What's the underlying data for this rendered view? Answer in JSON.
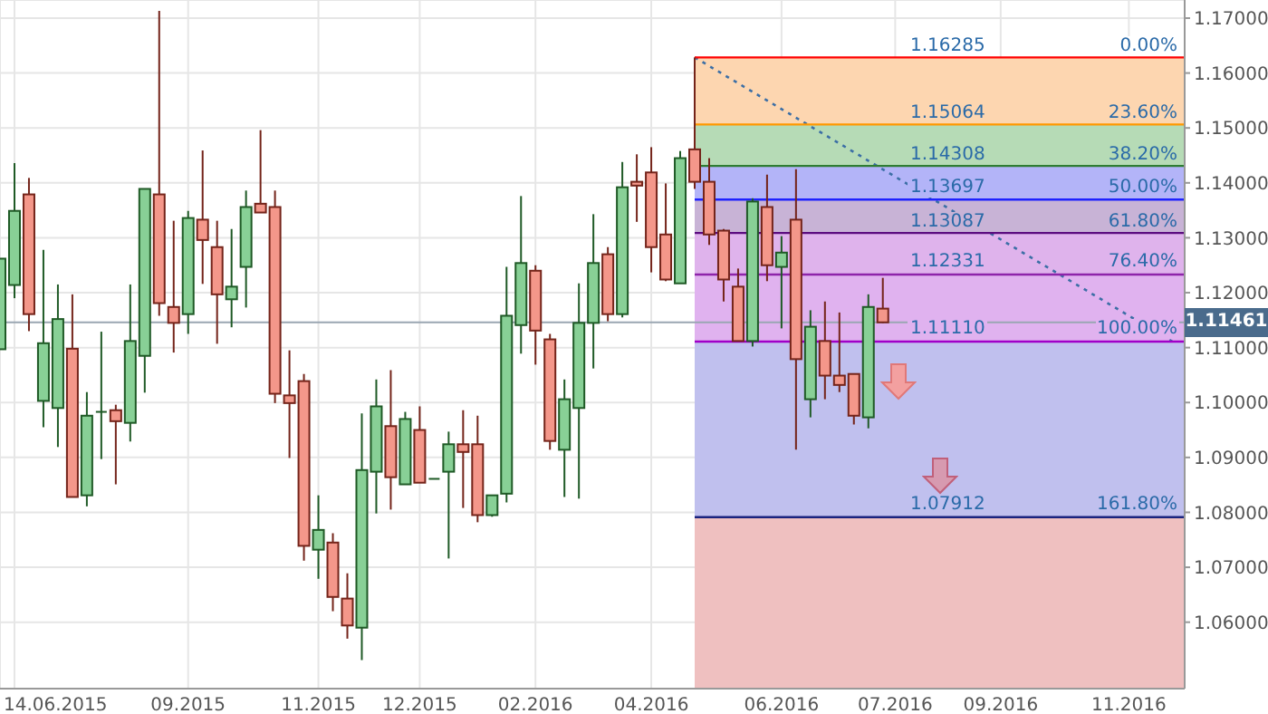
{
  "chart_data": {
    "type": "candlestick",
    "x": [
      "2015-06-07",
      "2015-06-14",
      "2015-06-21",
      "2015-06-28",
      "2015-07-05",
      "2015-07-12",
      "2015-07-19",
      "2015-07-26",
      "2015-08-02",
      "2015-08-09",
      "2015-08-16",
      "2015-08-23",
      "2015-08-30",
      "2015-09-06",
      "2015-09-13",
      "2015-09-20",
      "2015-09-27",
      "2015-10-04",
      "2015-10-11",
      "2015-10-18",
      "2015-10-25",
      "2015-11-01",
      "2015-11-08",
      "2015-11-15",
      "2015-11-22",
      "2015-11-29",
      "2015-12-06",
      "2015-12-13",
      "2015-12-20",
      "2015-12-27",
      "2016-01-03",
      "2016-01-10",
      "2016-01-17",
      "2016-01-24",
      "2016-01-31",
      "2016-02-07",
      "2016-02-14",
      "2016-02-21",
      "2016-02-28",
      "2016-03-06",
      "2016-03-13",
      "2016-03-20",
      "2016-03-27",
      "2016-04-03",
      "2016-04-10",
      "2016-04-17",
      "2016-04-24",
      "2016-05-01",
      "2016-05-08",
      "2016-05-15",
      "2016-05-22",
      "2016-05-29",
      "2016-06-05",
      "2016-06-12",
      "2016-06-19",
      "2016-06-26",
      "2016-07-03",
      "2016-07-10",
      "2016-07-17",
      "2016-07-24",
      "2016-07-31",
      "2016-08-07"
    ],
    "ohlc": [
      [
        1.1097,
        1.1262,
        1.1097,
        1.1262
      ],
      [
        1.1214,
        1.1436,
        1.119,
        1.1349
      ],
      [
        1.1379,
        1.1409,
        1.113,
        1.1161
      ],
      [
        1.1003,
        1.1278,
        1.0955,
        1.1108
      ],
      [
        1.099,
        1.1215,
        1.0919,
        1.1152
      ],
      [
        1.1098,
        1.1197,
        1.0828,
        1.0828
      ],
      [
        1.0831,
        1.1019,
        1.0811,
        1.0976
      ],
      [
        1.0983,
        1.1129,
        1.0897,
        1.0983
      ],
      [
        1.0986,
        1.0996,
        1.0851,
        1.0966
      ],
      [
        1.0963,
        1.1215,
        1.0929,
        1.1112
      ],
      [
        1.1085,
        1.1389,
        1.1018,
        1.1389
      ],
      [
        1.1379,
        1.1713,
        1.1158,
        1.1181
      ],
      [
        1.1174,
        1.1331,
        1.1091,
        1.1145
      ],
      [
        1.1161,
        1.1349,
        1.1125,
        1.1336
      ],
      [
        1.1333,
        1.1459,
        1.1216,
        1.1296
      ],
      [
        1.1283,
        1.1331,
        1.1107,
        1.1197
      ],
      [
        1.1188,
        1.1316,
        1.1137,
        1.1211
      ],
      [
        1.1247,
        1.1386,
        1.1173,
        1.1356
      ],
      [
        1.1362,
        1.1496,
        1.1346,
        1.1346
      ],
      [
        1.1356,
        1.1386,
        1.0999,
        1.1016
      ],
      [
        1.1013,
        1.1095,
        1.0899,
        1.0999
      ],
      [
        1.1039,
        1.1052,
        1.0712,
        1.0739
      ],
      [
        1.0732,
        1.0831,
        1.0679,
        1.0768
      ],
      [
        1.0745,
        1.0762,
        1.062,
        1.0646
      ],
      [
        1.0643,
        1.0689,
        1.057,
        1.0594
      ],
      [
        1.059,
        1.098,
        1.0531,
        1.0877
      ],
      [
        1.0874,
        1.1042,
        1.0798,
        1.0993
      ],
      [
        1.0957,
        1.1059,
        1.0805,
        1.0864
      ],
      [
        1.0851,
        1.0983,
        1.0851,
        1.097
      ],
      [
        1.095,
        1.0993,
        1.0854,
        1.0854
      ],
      [
        1.0861,
        1.0861,
        1.0861,
        1.0861
      ],
      [
        1.0874,
        1.0947,
        1.0716,
        1.0924
      ],
      [
        1.0924,
        1.0986,
        1.0808,
        1.091
      ],
      [
        1.0924,
        1.0976,
        1.0782,
        1.0795
      ],
      [
        1.0795,
        1.0831,
        1.0792,
        1.0831
      ],
      [
        1.0834,
        1.1247,
        1.0818,
        1.1158
      ],
      [
        1.1141,
        1.1376,
        1.1089,
        1.1254
      ],
      [
        1.124,
        1.125,
        1.1069,
        1.1131
      ],
      [
        1.1115,
        1.1125,
        1.0914,
        1.093
      ],
      [
        1.0914,
        1.1042,
        1.0828,
        1.1006
      ],
      [
        1.099,
        1.1217,
        1.0825,
        1.1145
      ],
      [
        1.1145,
        1.1343,
        1.1062,
        1.1254
      ],
      [
        1.127,
        1.1283,
        1.1148,
        1.1161
      ],
      [
        1.1161,
        1.1438,
        1.1155,
        1.1392
      ],
      [
        1.1402,
        1.1452,
        1.1329,
        1.1395
      ],
      [
        1.1419,
        1.1465,
        1.1237,
        1.1283
      ],
      [
        1.1306,
        1.1399,
        1.1221,
        1.1224
      ],
      [
        1.1217,
        1.1458,
        1.1217,
        1.1445
      ],
      [
        1.1461,
        1.16285,
        1.1389,
        1.1402
      ],
      [
        1.1402,
        1.1445,
        1.1287,
        1.1306
      ],
      [
        1.1313,
        1.1316,
        1.1184,
        1.1224
      ],
      [
        1.1211,
        1.1244,
        1.1112,
        1.1112
      ],
      [
        1.1112,
        1.1372,
        1.1102,
        1.1366
      ],
      [
        1.1356,
        1.1415,
        1.1221,
        1.125
      ],
      [
        1.1247,
        1.1303,
        1.1135,
        1.1273
      ],
      [
        1.1333,
        1.1425,
        1.0914,
        1.1079
      ],
      [
        1.1006,
        1.1168,
        1.0973,
        1.1138
      ],
      [
        1.1112,
        1.1184,
        1.1006,
        1.1049
      ],
      [
        1.1049,
        1.1164,
        1.1019,
        1.1032
      ],
      [
        1.1052,
        1.1052,
        1.096,
        1.0976
      ],
      [
        1.0973,
        1.1197,
        1.0953,
        1.1174
      ],
      [
        1.1171,
        1.1227,
        1.1145,
        1.1146
      ]
    ],
    "xlim": [
      "2015-06-07",
      "2016-12-31"
    ],
    "xticks": [
      {
        "value": "2015-06-14",
        "label": "14.06.2015"
      },
      {
        "value": "2015-09-06",
        "label": "09.2015"
      },
      {
        "value": "2015-11-08",
        "label": "11.2015"
      },
      {
        "value": "2015-12-27",
        "label": "12.2015"
      },
      {
        "value": "2016-02-21",
        "label": "02.2016"
      },
      {
        "value": "2016-04-17",
        "label": "04.2016"
      },
      {
        "value": "2016-06-19",
        "label": "06.2016"
      },
      {
        "value": "2016-08-13",
        "label": "07.2016"
      },
      {
        "value": "2016-10-03",
        "label": "09.2016"
      },
      {
        "value": "2016-12-04",
        "label": "11.2016"
      }
    ],
    "ylim": [
      1.0479,
      1.1733
    ],
    "yticks": [
      {
        "value": 1.06,
        "label": "1.06000"
      },
      {
        "value": 1.07,
        "label": "1.07000"
      },
      {
        "value": 1.08,
        "label": "1.08000"
      },
      {
        "value": 1.09,
        "label": "1.09000"
      },
      {
        "value": 1.1,
        "label": "1.10000"
      },
      {
        "value": 1.11,
        "label": "1.11000"
      },
      {
        "value": 1.12,
        "label": "1.12000"
      },
      {
        "value": 1.13,
        "label": "1.13000"
      },
      {
        "value": 1.14,
        "label": "1.14000"
      },
      {
        "value": 1.15,
        "label": "1.15000"
      },
      {
        "value": 1.16,
        "label": "1.16000"
      },
      {
        "value": 1.17,
        "label": "1.17000"
      }
    ],
    "grid": true,
    "ref_lines": [
      {
        "axis": "y",
        "value": 1.16285,
        "label": "1.16285",
        "color": "#ff0000"
      },
      {
        "axis": "y",
        "value": 1.15064,
        "label": "1.15064",
        "color": "#ff9800"
      },
      {
        "axis": "y",
        "value": 1.14308,
        "label": "1.14308",
        "color": "#2e7d32"
      },
      {
        "axis": "y",
        "value": 1.13697,
        "label": "1.13697",
        "color": "#1e22ff"
      },
      {
        "axis": "y",
        "value": 1.13087,
        "label": "1.13087",
        "color": "#5b0c80"
      },
      {
        "axis": "y",
        "value": 1.12331,
        "label": "1.12331",
        "color": "#8e24aa"
      },
      {
        "axis": "y",
        "value": 1.1111,
        "label": "1.11110",
        "color": "#a000c8"
      },
      {
        "axis": "y",
        "value": 1.07912,
        "label": "1.07912",
        "color": "#1a237e"
      },
      {
        "axis": "y",
        "value": 1.11461,
        "label": "1.11461",
        "color": "#9aa6b2"
      }
    ],
    "bands": [
      {
        "axis": "y",
        "from": 1.15064,
        "to": 1.16285,
        "color": "#fdd6b0"
      },
      {
        "axis": "y",
        "from": 1.14308,
        "to": 1.15064,
        "color": "#b6dbb6"
      },
      {
        "axis": "y",
        "from": 1.13697,
        "to": 1.14308,
        "color": "#b3b4f8"
      },
      {
        "axis": "y",
        "from": 1.13087,
        "to": 1.13697,
        "color": "#c8b3d6"
      },
      {
        "axis": "y",
        "from": 1.12331,
        "to": 1.13087,
        "color": "#dfb3ec"
      },
      {
        "axis": "y",
        "from": 1.1111,
        "to": 1.12331,
        "color": "#e0b2ef"
      },
      {
        "axis": "y",
        "from": 1.07912,
        "to": 1.1111,
        "color": "#c0c0ee"
      },
      {
        "axis": "y",
        "from": 1.0479,
        "to": 1.07912,
        "color": "#efc0c0"
      }
    ],
    "annotations": [
      {
        "text": "0.00%",
        "x": "2016-12-31",
        "y": 1.16285
      },
      {
        "text": "23.60%",
        "x": "2016-12-31",
        "y": 1.15064
      },
      {
        "text": "38.20%",
        "x": "2016-12-31",
        "y": 1.14308
      },
      {
        "text": "50.00%",
        "x": "2016-12-31",
        "y": 1.13697
      },
      {
        "text": "61.80%",
        "x": "2016-12-31",
        "y": 1.13087
      },
      {
        "text": "76.40%",
        "x": "2016-12-31",
        "y": 1.12331
      },
      {
        "text": "100.00%",
        "x": "2016-12-31",
        "y": 1.1111
      },
      {
        "text": "161.80%",
        "x": "2016-12-31",
        "y": 1.07912
      }
    ],
    "series": [
      {
        "type": "line",
        "x": [
          "2016-05-08",
          "2016-12-25"
        ],
        "values": [
          1.16285,
          1.1111
        ],
        "color": "#3b6ea5",
        "line_style": "dotted"
      }
    ]
  }
}
